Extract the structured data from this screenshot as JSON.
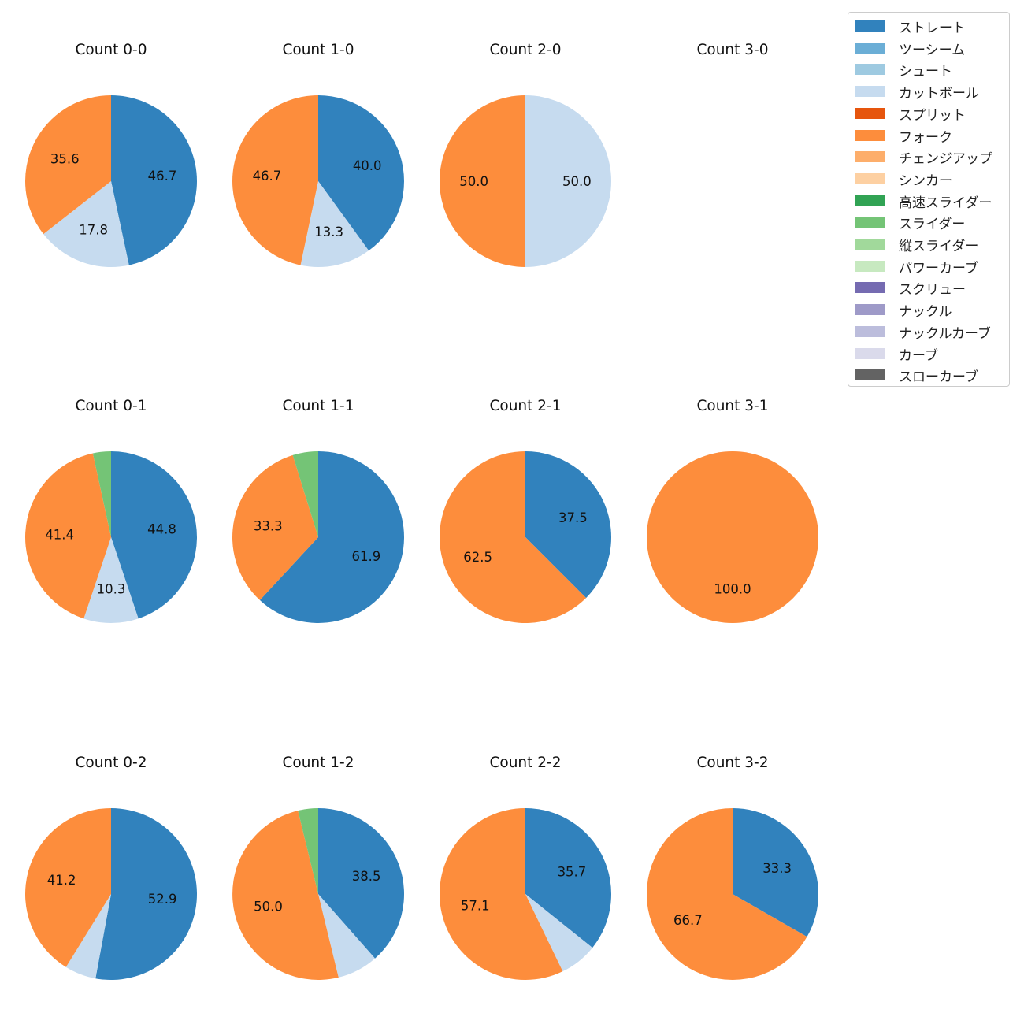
{
  "chart_data": {
    "type": "pie",
    "legend": {
      "placement": "top-right",
      "entries": [
        {
          "name": "ストレート",
          "color": "#3182bd"
        },
        {
          "name": "ツーシーム",
          "color": "#6baed6"
        },
        {
          "name": "シュート",
          "color": "#9ecae1"
        },
        {
          "name": "カットボール",
          "color": "#c6dbef"
        },
        {
          "name": "スプリット",
          "color": "#e6550d"
        },
        {
          "name": "フォーク",
          "color": "#fd8d3c"
        },
        {
          "name": "チェンジアップ",
          "color": "#fdae6b"
        },
        {
          "name": "シンカー",
          "color": "#fdd0a2"
        },
        {
          "name": "高速スライダー",
          "color": "#31a354"
        },
        {
          "name": "スライダー",
          "color": "#74c476"
        },
        {
          "name": "縦スライダー",
          "color": "#a1d99b"
        },
        {
          "name": "パワーカーブ",
          "color": "#c7e9c0"
        },
        {
          "name": "スクリュー",
          "color": "#756bb1"
        },
        {
          "name": "ナックル",
          "color": "#9e9ac8"
        },
        {
          "name": "ナックルカーブ",
          "color": "#bcbddc"
        },
        {
          "name": "カーブ",
          "color": "#dadaeb"
        },
        {
          "name": "スローカーブ",
          "color": "#636363"
        }
      ]
    },
    "charts": [
      {
        "title": "Count 0-0",
        "slices": [
          {
            "pitch": "ストレート",
            "value": 46.7,
            "label": "46.7"
          },
          {
            "pitch": "カットボール",
            "value": 17.8,
            "label": "17.8"
          },
          {
            "pitch": "フォーク",
            "value": 35.6,
            "label": "35.6"
          }
        ]
      },
      {
        "title": "Count 1-0",
        "slices": [
          {
            "pitch": "ストレート",
            "value": 40.0,
            "label": "40.0"
          },
          {
            "pitch": "カットボール",
            "value": 13.3,
            "label": "13.3"
          },
          {
            "pitch": "フォーク",
            "value": 46.7,
            "label": "46.7"
          }
        ]
      },
      {
        "title": "Count 2-0",
        "slices": [
          {
            "pitch": "カットボール",
            "value": 50.0,
            "label": "50.0"
          },
          {
            "pitch": "フォーク",
            "value": 50.0,
            "label": "50.0"
          }
        ]
      },
      {
        "title": "Count 3-0",
        "slices": []
      },
      {
        "title": "Count 0-1",
        "slices": [
          {
            "pitch": "ストレート",
            "value": 44.8,
            "label": "44.8"
          },
          {
            "pitch": "カットボール",
            "value": 10.3,
            "label": "10.3"
          },
          {
            "pitch": "フォーク",
            "value": 41.4,
            "label": "41.4"
          },
          {
            "pitch": "スライダー",
            "value": 3.4,
            "label": ""
          }
        ]
      },
      {
        "title": "Count 1-1",
        "slices": [
          {
            "pitch": "ストレート",
            "value": 61.9,
            "label": "61.9"
          },
          {
            "pitch": "フォーク",
            "value": 33.3,
            "label": "33.3"
          },
          {
            "pitch": "スライダー",
            "value": 4.8,
            "label": ""
          }
        ]
      },
      {
        "title": "Count 2-1",
        "slices": [
          {
            "pitch": "ストレート",
            "value": 37.5,
            "label": "37.5"
          },
          {
            "pitch": "フォーク",
            "value": 62.5,
            "label": "62.5"
          }
        ]
      },
      {
        "title": "Count 3-1",
        "slices": [
          {
            "pitch": "フォーク",
            "value": 100.0,
            "label": "100.0"
          }
        ]
      },
      {
        "title": "Count 0-2",
        "slices": [
          {
            "pitch": "ストレート",
            "value": 52.9,
            "label": "52.9"
          },
          {
            "pitch": "カットボール",
            "value": 5.9,
            "label": ""
          },
          {
            "pitch": "フォーク",
            "value": 41.2,
            "label": "41.2"
          }
        ]
      },
      {
        "title": "Count 1-2",
        "slices": [
          {
            "pitch": "ストレート",
            "value": 38.5,
            "label": "38.5"
          },
          {
            "pitch": "カットボール",
            "value": 7.7,
            "label": ""
          },
          {
            "pitch": "フォーク",
            "value": 50.0,
            "label": "50.0"
          },
          {
            "pitch": "スライダー",
            "value": 3.8,
            "label": ""
          }
        ]
      },
      {
        "title": "Count 2-2",
        "slices": [
          {
            "pitch": "ストレート",
            "value": 35.7,
            "label": "35.7"
          },
          {
            "pitch": "カットボール",
            "value": 7.1,
            "label": ""
          },
          {
            "pitch": "フォーク",
            "value": 57.1,
            "label": "57.1"
          }
        ]
      },
      {
        "title": "Count 3-2",
        "slices": [
          {
            "pitch": "ストレート",
            "value": 33.3,
            "label": "33.3"
          },
          {
            "pitch": "フォーク",
            "value": 66.7,
            "label": "66.7"
          }
        ]
      }
    ]
  }
}
